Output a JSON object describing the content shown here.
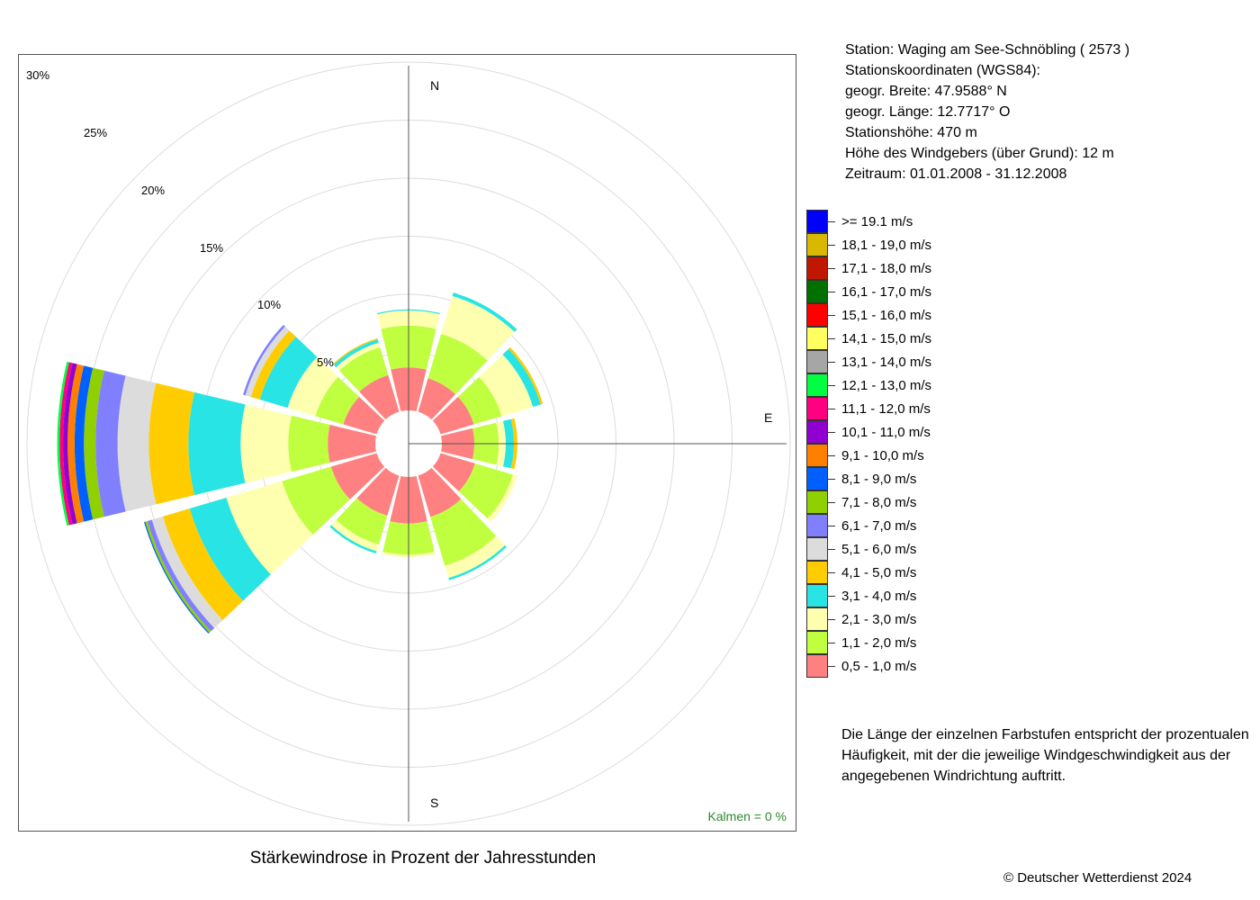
{
  "station": {
    "lines": [
      "Station:  Waging am See-Schnöbling  ( 2573 )",
      "Stationskoordinaten (WGS84):",
      "geogr. Breite: 47.9588° N",
      "geogr. Länge: 12.7717° O",
      "Stationshöhe: 470 m",
      "Höhe des Windgebers (über Grund): 12 m",
      "Zeitraum: 01.01.2008 - 31.12.2008"
    ]
  },
  "note": {
    "lines": [
      "Die Länge der einzelnen Farbstufen entspricht der prozentualen",
      "Häufigkeit, mit der die jeweilige Windgeschwindigkeit aus der",
      "angegebenen Windrichtung auftritt."
    ]
  },
  "calm_label": "Kalmen  =  0 %",
  "copyright": "© Deutscher Wetterdienst  2024",
  "chart_data": {
    "type": "wind-rose",
    "title": "Stärkewindrose in Prozent der Jahresstunden",
    "rings": [
      "5%",
      "10%",
      "15%",
      "20%",
      "25%",
      "30%"
    ],
    "ring_values": [
      5,
      10,
      15,
      20,
      25,
      30
    ],
    "directions": [
      "N",
      "E",
      "S"
    ],
    "sector_centers_deg": [
      0,
      30,
      60,
      90,
      120,
      150,
      180,
      210,
      240,
      270,
      300,
      330
    ],
    "grid": true,
    "legend_position": "right",
    "speed_classes": [
      {
        "label": ">= 19.1 m/s",
        "color": "#0000ff"
      },
      {
        "label": "18,1 - 19,0 m/s",
        "color": "#d8b800"
      },
      {
        "label": "17,1 - 18,0 m/s",
        "color": "#c01800"
      },
      {
        "label": "16,1 - 17,0 m/s",
        "color": "#007000"
      },
      {
        "label": "15,1 - 16,0 m/s",
        "color": "#ff0000"
      },
      {
        "label": "14,1 - 15,0 m/s",
        "color": "#ffff60"
      },
      {
        "label": "13,1 - 14,0 m/s",
        "color": "#a6a6a6"
      },
      {
        "label": "12,1 - 13,0 m/s",
        "color": "#00ff40"
      },
      {
        "label": "11,1 - 12,0 m/s",
        "color": "#ff0080"
      },
      {
        "label": "10,1 - 11,0 m/s",
        "color": "#9000d0"
      },
      {
        "label": "9,1 - 10,0 m/s",
        "color": "#ff8000"
      },
      {
        "label": "8,1 - 9,0 m/s",
        "color": "#0060ff"
      },
      {
        "label": "7,1 - 8,0 m/s",
        "color": "#90d000"
      },
      {
        "label": "6,1 - 7,0 m/s",
        "color": "#8080ff"
      },
      {
        "label": "5,1 - 6,0 m/s",
        "color": "#dcdcdc"
      },
      {
        "label": "4,1 - 5,0 m/s",
        "color": "#ffcc00"
      },
      {
        "label": "3,1 - 4,0 m/s",
        "color": "#28e4e4"
      },
      {
        "label": "2,1 - 3,0 m/s",
        "color": "#ffffb0"
      },
      {
        "label": "1,1 - 2,0 m/s",
        "color": "#c0ff40"
      },
      {
        "label": "0,5 - 1,0 m/s",
        "color": "#ff8080"
      }
    ],
    "sector_values_note": "cumulative percent, ordered from 0,5 - 1,0 m/s outward",
    "sectors": [
      {
        "dir": 0,
        "values": [
          3.7,
          7.3,
          8.6,
          8.7
        ]
      },
      {
        "dir": 30,
        "values": [
          3.0,
          7.0,
          10.4,
          10.7
        ]
      },
      {
        "dir": 60,
        "values": [
          3.0,
          5.5,
          8.3,
          9.0,
          9.2
        ]
      },
      {
        "dir": 90,
        "values": [
          2.8,
          4.9,
          5.5,
          6.2,
          6.5
        ]
      },
      {
        "dir": 120,
        "values": [
          3.1,
          6.5,
          6.9
        ]
      },
      {
        "dir": 150,
        "values": [
          3.7,
          8.1,
          9.2,
          9.4
        ]
      },
      {
        "dir": 180,
        "values": [
          4.0,
          6.7,
          6.9
        ]
      },
      {
        "dir": 210,
        "values": [
          3.6,
          6.2,
          6.8,
          7.0
        ]
      },
      {
        "dir": 240,
        "values": [
          4.1,
          8.5,
          13.5,
          16.8,
          19.2,
          20.2,
          20.6,
          20.8,
          20.9
        ]
      },
      {
        "dir": 270,
        "values": [
          4.1,
          7.5,
          11.6,
          16.1,
          19.5,
          22.2,
          24.1,
          25.1,
          25.9,
          26.5,
          26.9,
          27.2,
          27.4
        ]
      },
      {
        "dir": 300,
        "values": [
          3.0,
          5.5,
          8.0,
          10.5,
          11.3,
          11.8,
          12.0
        ]
      },
      {
        "dir": 330,
        "values": [
          3.3,
          5.8,
          6.2,
          6.5,
          6.6
        ]
      }
    ]
  }
}
